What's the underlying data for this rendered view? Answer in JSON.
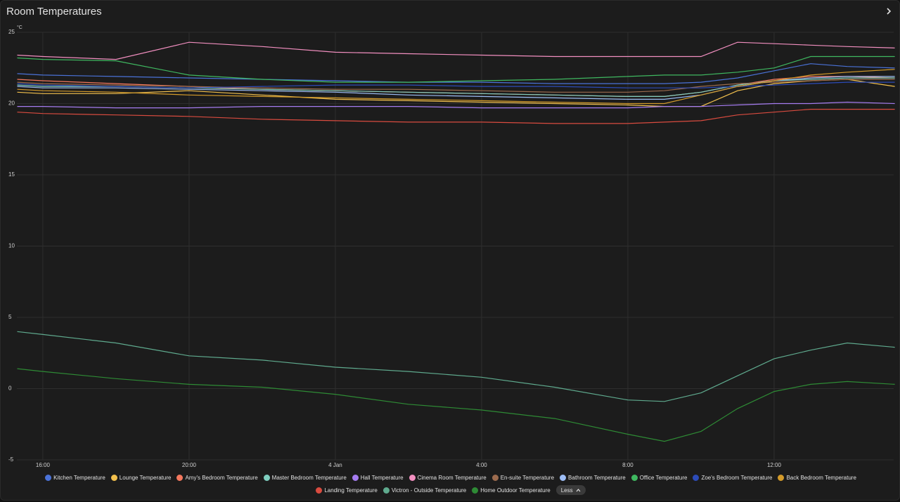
{
  "chart_data": {
    "type": "line",
    "title": "Room Temperatures",
    "y_label": "°C",
    "x": [
      15.3,
      16,
      18,
      20,
      22,
      24,
      26,
      28,
      30,
      32,
      33,
      34,
      35,
      36,
      37,
      38,
      39.3
    ],
    "xlim": [
      15.29,
      39.27
    ],
    "xticks": [
      {
        "value": 16,
        "label": "16:00"
      },
      {
        "value": 20,
        "label": "20:00"
      },
      {
        "value": 24,
        "label": "4 Jan"
      },
      {
        "value": 28,
        "label": "4:00"
      },
      {
        "value": 32,
        "label": "8:00"
      },
      {
        "value": 36,
        "label": "12:00"
      }
    ],
    "ylim": [
      -5,
      25
    ],
    "yticks": [
      -5,
      0,
      5,
      10,
      15,
      20,
      25
    ],
    "grid": true,
    "series": [
      {
        "name": "Kitchen Temperature",
        "color": "#4a72d8",
        "values": [
          22.1,
          22.0,
          21.9,
          21.8,
          21.7,
          21.6,
          21.5,
          21.5,
          21.4,
          21.4,
          21.4,
          21.5,
          21.8,
          22.3,
          22.8,
          22.6,
          22.5
        ]
      },
      {
        "name": "Lounge Temperature",
        "color": "#f2c04d",
        "values": [
          20.8,
          20.7,
          20.7,
          20.9,
          20.6,
          20.3,
          20.2,
          20.1,
          20.0,
          19.9,
          19.8,
          19.8,
          20.9,
          21.4,
          21.6,
          21.7,
          21.2
        ]
      },
      {
        "name": "Amy's Bedroom Temperature",
        "color": "#f4785e",
        "values": [
          21.7,
          21.6,
          21.4,
          21.2,
          21.0,
          20.9,
          20.8,
          20.7,
          20.6,
          20.5,
          20.5,
          20.8,
          21.3,
          21.7,
          21.9,
          21.9,
          21.8
        ]
      },
      {
        "name": "Master Bedroom Temperature",
        "color": "#7fcfc0",
        "values": [
          21.3,
          21.2,
          21.2,
          21.1,
          21.0,
          20.9,
          20.8,
          20.7,
          20.6,
          20.5,
          20.5,
          20.8,
          21.3,
          21.6,
          21.7,
          21.8,
          21.8
        ]
      },
      {
        "name": "Hall Temperature",
        "color": "#a57cf0",
        "values": [
          19.8,
          19.8,
          19.7,
          19.7,
          19.8,
          19.8,
          19.8,
          19.7,
          19.7,
          19.7,
          19.8,
          19.8,
          19.9,
          20.0,
          20.0,
          20.1,
          20.0
        ]
      },
      {
        "name": "Cinema Room Temperature",
        "color": "#f28fc0",
        "values": [
          23.4,
          23.3,
          23.1,
          24.3,
          24.0,
          23.6,
          23.5,
          23.4,
          23.3,
          23.3,
          23.3,
          23.3,
          24.3,
          24.2,
          24.1,
          24.0,
          23.9
        ]
      },
      {
        "name": "En-suite Temperature",
        "color": "#9c6b4e",
        "values": [
          21.5,
          21.4,
          21.3,
          21.2,
          21.1,
          21.0,
          21.0,
          20.9,
          20.8,
          20.8,
          20.9,
          21.2,
          21.4,
          21.5,
          21.6,
          21.7,
          21.7
        ]
      },
      {
        "name": "Bathroom Temperature",
        "color": "#9dbdf5",
        "values": [
          21.2,
          21.1,
          21.1,
          21.0,
          20.9,
          20.8,
          20.6,
          20.5,
          20.4,
          20.3,
          20.3,
          20.6,
          21.2,
          21.6,
          21.8,
          21.9,
          21.9
        ]
      },
      {
        "name": "Office Temperature",
        "color": "#3fb860",
        "values": [
          23.2,
          23.1,
          23.0,
          22.0,
          21.7,
          21.5,
          21.5,
          21.6,
          21.7,
          21.9,
          22.0,
          22.0,
          22.2,
          22.5,
          23.3,
          23.3,
          23.3
        ]
      },
      {
        "name": "Zoe's Bedroom Temperature",
        "color": "#2c4bb8",
        "values": [
          21.4,
          21.3,
          21.2,
          21.1,
          21.2,
          21.3,
          21.3,
          21.2,
          21.2,
          21.1,
          21.1,
          21.1,
          21.2,
          21.3,
          21.4,
          21.5,
          21.5
        ]
      },
      {
        "name": "Back Bedroom Temperature",
        "color": "#d49b2a",
        "values": [
          21.0,
          20.9,
          20.8,
          20.6,
          20.5,
          20.4,
          20.3,
          20.2,
          20.1,
          20.0,
          20.0,
          20.6,
          21.2,
          21.6,
          22.0,
          22.2,
          22.4
        ]
      },
      {
        "name": "Landing Temperature",
        "color": "#d94b3f",
        "values": [
          19.4,
          19.3,
          19.2,
          19.1,
          18.9,
          18.8,
          18.7,
          18.7,
          18.6,
          18.6,
          18.7,
          18.8,
          19.2,
          19.4,
          19.6,
          19.6,
          19.6
        ]
      },
      {
        "name": "Victron - Outside Temperature",
        "color": "#5faa8e",
        "values": [
          4.0,
          3.8,
          3.2,
          2.3,
          2.0,
          1.5,
          1.2,
          0.8,
          0.1,
          -0.8,
          -0.9,
          -0.3,
          0.9,
          2.1,
          2.7,
          3.2,
          2.9
        ]
      },
      {
        "name": "Home Outdoor Temperature",
        "color": "#2e8b35",
        "values": [
          1.4,
          1.2,
          0.7,
          0.3,
          0.1,
          -0.4,
          -1.1,
          -1.5,
          -2.1,
          -3.2,
          -3.7,
          -3.0,
          -1.4,
          -0.2,
          0.3,
          0.5,
          0.3
        ]
      }
    ]
  },
  "controls": {
    "legend_toggle": "Less"
  }
}
